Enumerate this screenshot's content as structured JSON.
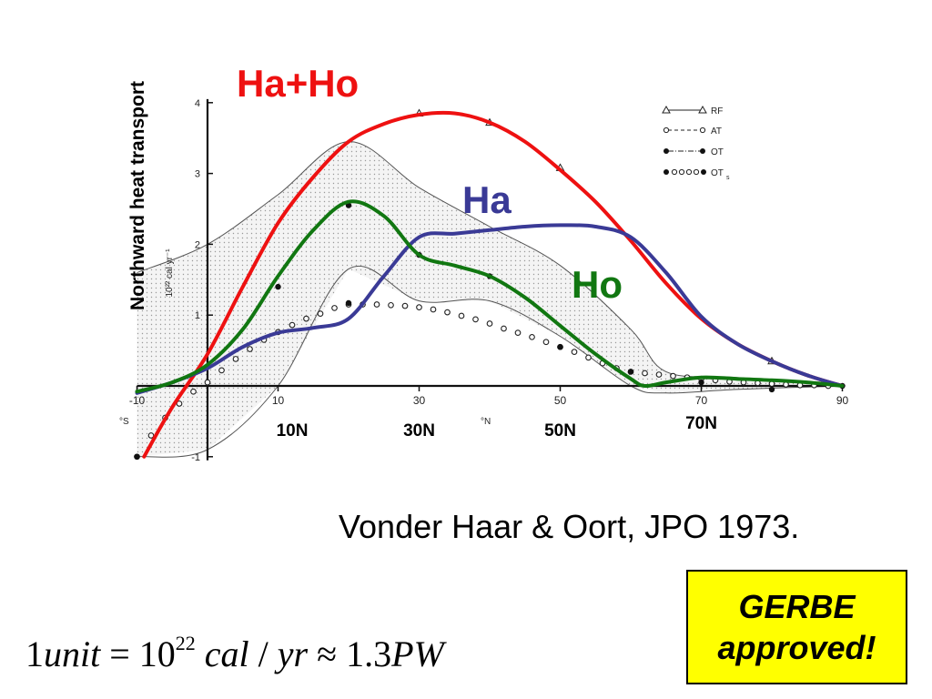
{
  "chart_data": {
    "type": "line",
    "ylabel": "Northward heat transport",
    "y_unit_label": "10²² cal yr⁻¹",
    "x_ticks": [
      "-10",
      "10",
      "30",
      "50",
      "70",
      "90"
    ],
    "x_tick_values": [
      -10,
      10,
      30,
      50,
      70,
      90
    ],
    "x_extra_labels": [
      "°S",
      "°N"
    ],
    "y_ticks": [
      "-1",
      "1",
      "2",
      "3",
      "4"
    ],
    "y_tick_values": [
      -1,
      1,
      2,
      3,
      4
    ],
    "xlim": [
      -10,
      90
    ],
    "ylim": [
      -1,
      4
    ],
    "latitude_labels": [
      {
        "text": "10N",
        "x": 12
      },
      {
        "text": "30N",
        "x": 30
      },
      {
        "text": "50N",
        "x": 50
      },
      {
        "text": "70N",
        "x": 70
      }
    ],
    "legend": [
      "RF",
      "AT",
      "OT",
      "OT"
    ],
    "series": [
      {
        "name": "Ha+Ho",
        "color": "#ee1111",
        "x": [
          -9,
          -5,
          0,
          5,
          10,
          15,
          20,
          25,
          30,
          35,
          40,
          45,
          50,
          55,
          60,
          65,
          70,
          75,
          80,
          85,
          90
        ],
        "y": [
          -1.0,
          -0.3,
          0.45,
          1.4,
          2.3,
          2.95,
          3.45,
          3.7,
          3.83,
          3.85,
          3.72,
          3.45,
          3.05,
          2.6,
          2.05,
          1.45,
          0.95,
          0.6,
          0.35,
          0.15,
          0.0
        ]
      },
      {
        "name": "Ha",
        "color": "#3a3a96",
        "x": [
          -10,
          -5,
          0,
          5,
          10,
          15,
          20,
          25,
          30,
          35,
          40,
          45,
          50,
          55,
          60,
          65,
          70,
          75,
          80,
          85,
          90
        ],
        "y": [
          -0.1,
          0.05,
          0.25,
          0.55,
          0.75,
          0.82,
          0.95,
          1.55,
          2.1,
          2.15,
          2.2,
          2.25,
          2.27,
          2.25,
          2.1,
          1.6,
          0.98,
          0.6,
          0.35,
          0.15,
          0.0
        ]
      },
      {
        "name": "Ho",
        "color": "#117711",
        "x": [
          -10,
          -5,
          0,
          5,
          10,
          15,
          20,
          25,
          30,
          35,
          40,
          45,
          50,
          55,
          60,
          62,
          65,
          70,
          75,
          80,
          85,
          90
        ],
        "y": [
          -0.08,
          0.05,
          0.3,
          0.8,
          1.55,
          2.2,
          2.6,
          2.4,
          1.85,
          1.7,
          1.55,
          1.25,
          0.85,
          0.45,
          0.1,
          0.0,
          0.05,
          0.12,
          0.1,
          0.08,
          0.05,
          0.0
        ]
      }
    ]
  },
  "citation": "Vonder Haar & Oort, JPO 1973.",
  "badge": {
    "line1": "GERBE",
    "line2": "approved!"
  },
  "formula": {
    "lead": "1",
    "unit": "unit",
    "eq": " = 10",
    "exp": "22",
    "cal": " cal",
    "slash": " / ",
    "yr": "yr",
    "approx": " ≈ 1.3",
    "pw": "PW"
  },
  "colors": {
    "badge_bg": "#ffff00"
  }
}
